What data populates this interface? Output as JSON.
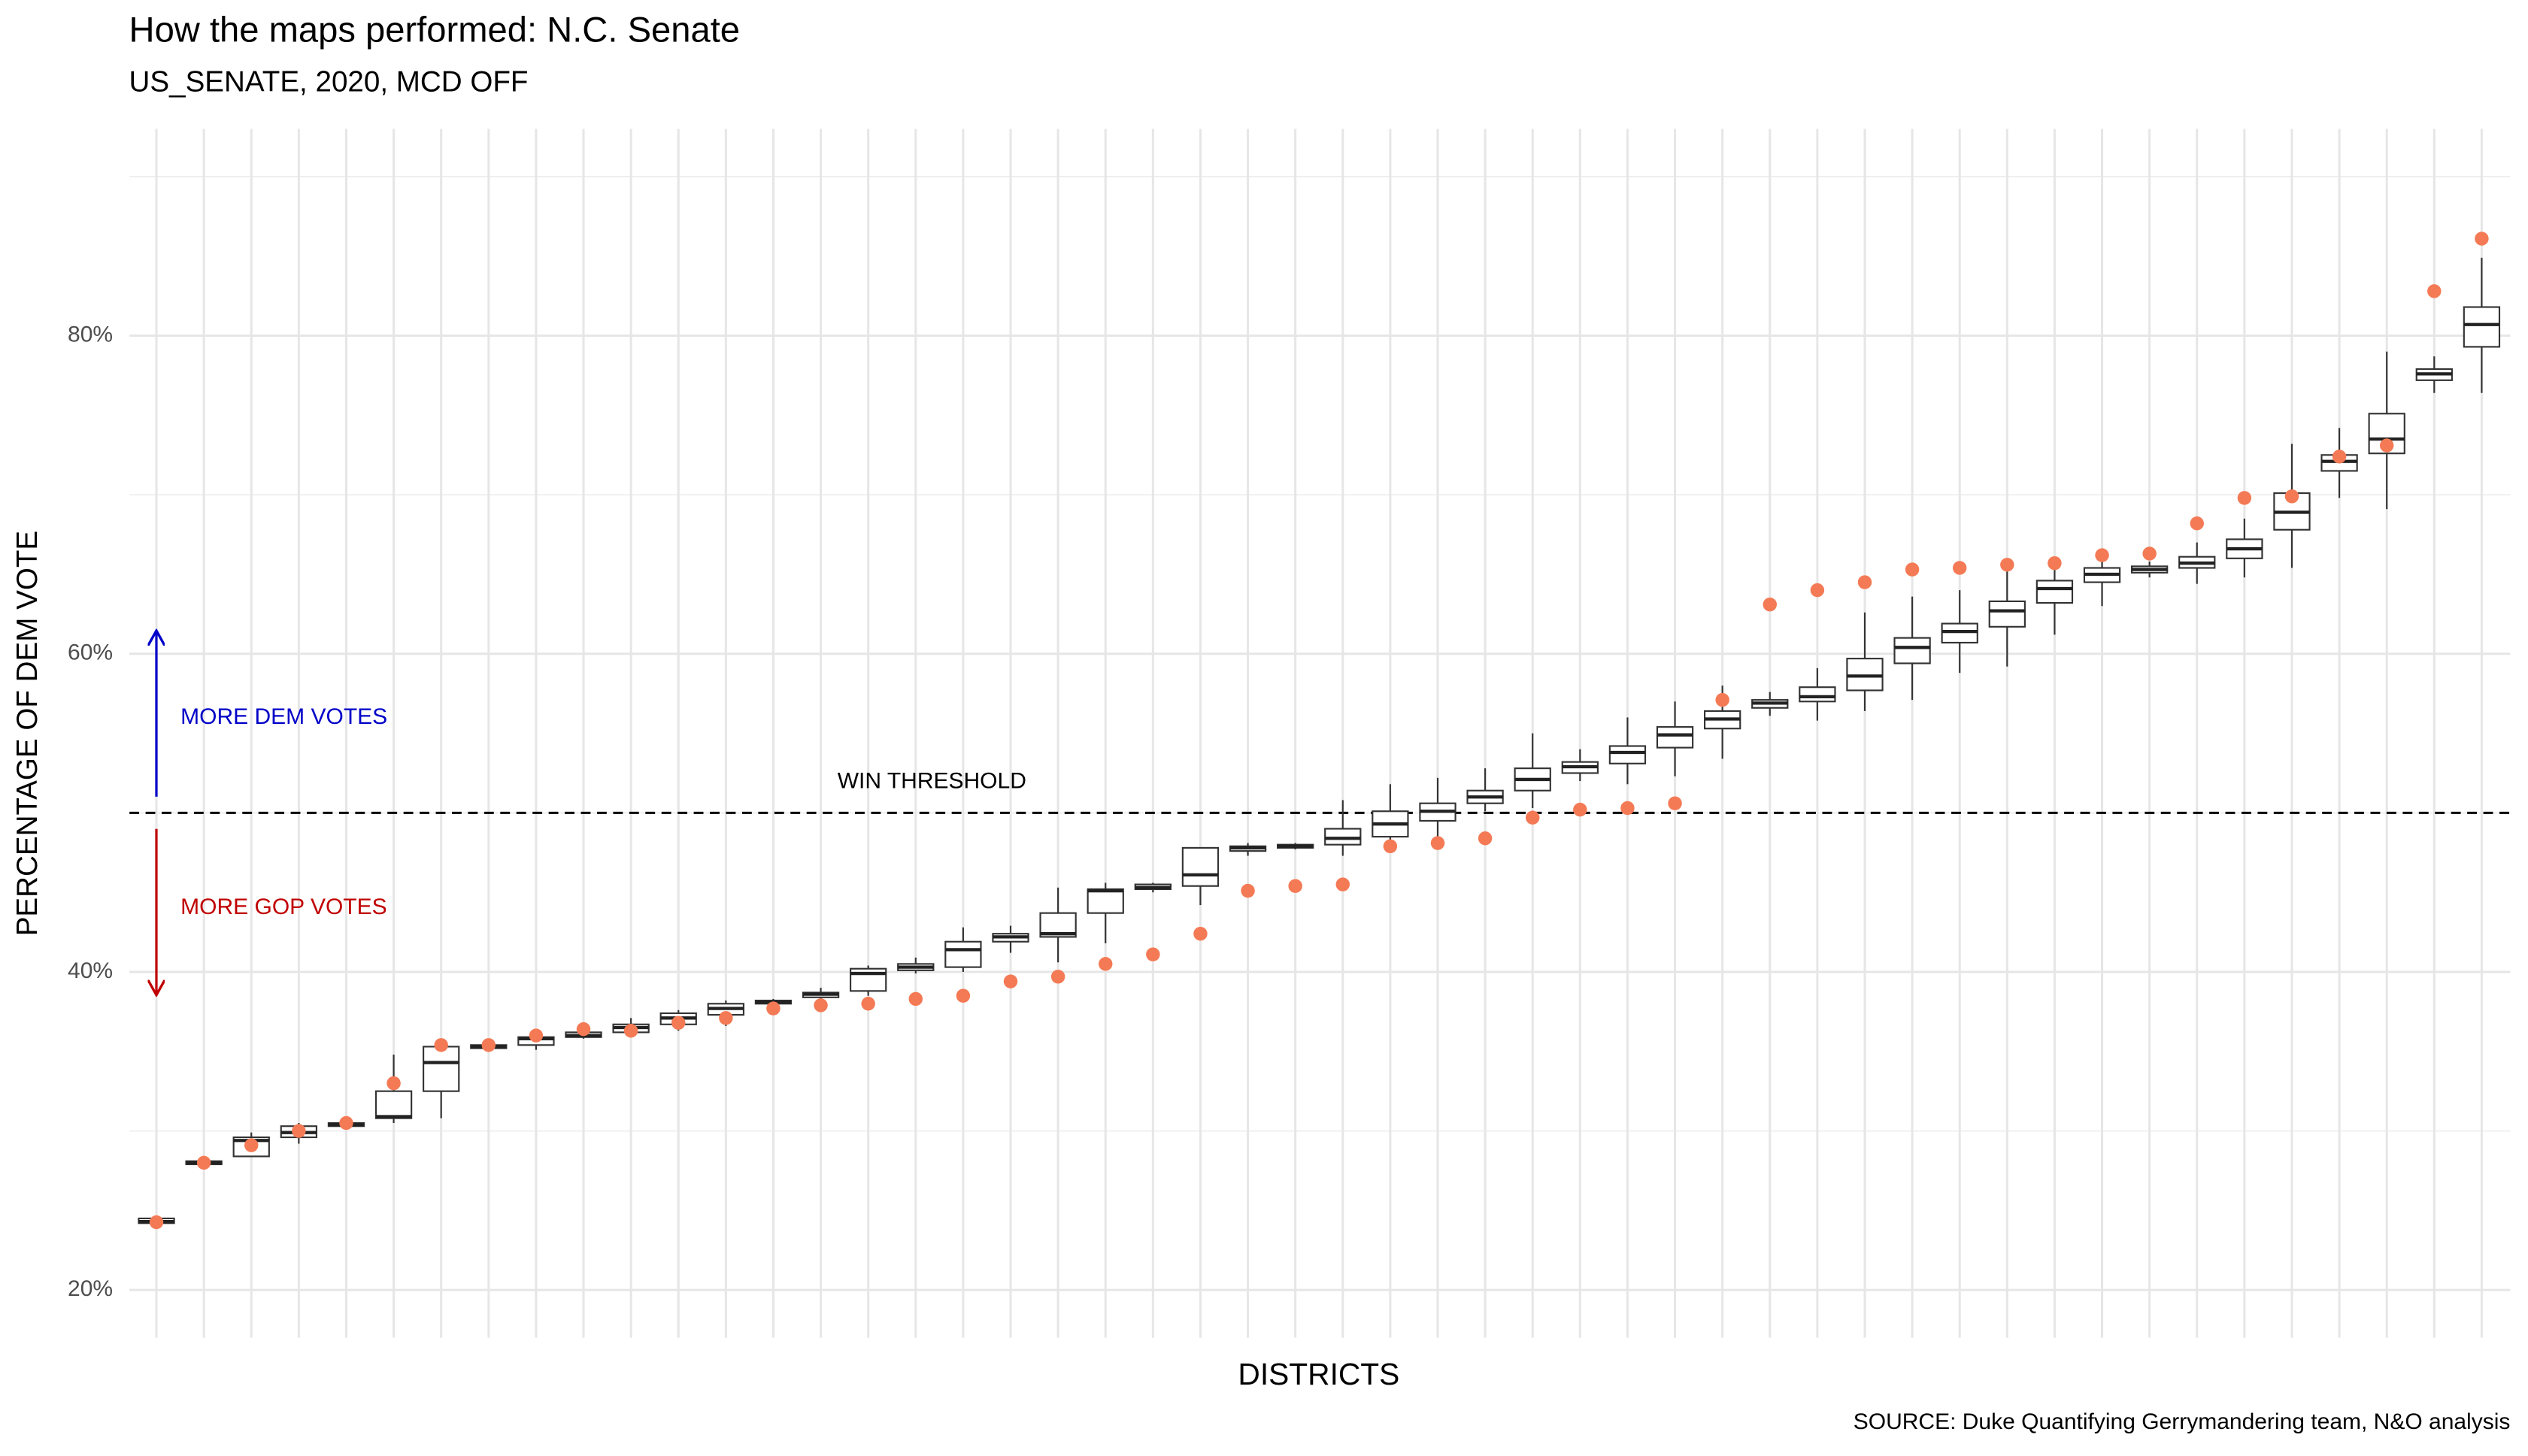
{
  "chart_data": {
    "type": "box",
    "title": "How the maps performed: N.C. Senate",
    "subtitle": "US_SENATE, 2020, MCD OFF",
    "x_label": "DISTRICTS",
    "y_label": "PERCENTAGE OF DEM VOTE",
    "source": "SOURCE: Duke Quantifying Gerrymandering team, N&O analysis",
    "annotations": {
      "threshold_label": "WIN THRESHOLD",
      "dem_label": "MORE DEM VOTES",
      "gop_label": "MORE GOP VOTES"
    },
    "threshold": 50,
    "dem_color": "#0000c8",
    "gop_color": "#c00000",
    "point_color": "#f47a55",
    "grid": true,
    "ylim": [
      17,
      93
    ],
    "yticks": [
      {
        "value": 20,
        "label": "20%"
      },
      {
        "value": 40,
        "label": "40%"
      },
      {
        "value": 60,
        "label": "60%"
      },
      {
        "value": 80,
        "label": "80%"
      }
    ],
    "categories": [
      null,
      null,
      null,
      null,
      null,
      null,
      null,
      null,
      null,
      null,
      null,
      null,
      null,
      null,
      null,
      null,
      null,
      null,
      null,
      null,
      null,
      null,
      null,
      null,
      null,
      null,
      null,
      null,
      null,
      null,
      null,
      null,
      null,
      null,
      null,
      null,
      null,
      null,
      null,
      null,
      null,
      null,
      null,
      null,
      null,
      null,
      null,
      null,
      null,
      null
    ],
    "whisker_low": [
      24.05,
      27.8,
      28.4,
      29.2,
      30.2,
      30.5,
      30.8,
      35.1,
      35.1,
      35.8,
      35.9,
      36.3,
      36.6,
      37.9,
      38.2,
      38.5,
      39.9,
      40.0,
      41.2,
      40.6,
      41.8,
      45.0,
      44.2,
      47.3,
      47.7,
      47.3,
      47.5,
      47.8,
      50.1,
      50.3,
      52.0,
      51.8,
      52.3,
      53.4,
      56.1,
      55.8,
      56.4,
      57.1,
      58.8,
      59.2,
      61.2,
      63.0,
      64.8,
      64.4,
      64.8,
      65.4,
      69.8,
      69.1,
      76.4,
      76.4
    ],
    "q1": [
      24.2,
      27.9,
      28.4,
      29.6,
      30.3,
      30.8,
      32.5,
      35.2,
      35.4,
      35.9,
      36.2,
      36.7,
      37.3,
      38.0,
      38.4,
      38.8,
      40.1,
      40.3,
      41.9,
      42.2,
      43.7,
      45.2,
      45.4,
      47.6,
      47.8,
      48.0,
      48.5,
      49.5,
      50.6,
      51.4,
      52.5,
      53.1,
      54.1,
      55.3,
      56.6,
      57.0,
      57.7,
      59.4,
      60.7,
      61.7,
      63.2,
      64.5,
      65.1,
      65.4,
      66.0,
      67.8,
      71.5,
      72.6,
      77.2,
      79.3
    ],
    "median": [
      24.3,
      28.0,
      29.4,
      29.9,
      30.4,
      30.9,
      34.3,
      35.3,
      35.8,
      36.0,
      36.5,
      37.1,
      37.7,
      38.1,
      38.6,
      39.9,
      40.3,
      41.4,
      42.2,
      42.4,
      45.1,
      45.3,
      46.1,
      47.8,
      47.9,
      48.4,
      49.3,
      50.1,
      51.0,
      52.1,
      52.9,
      53.8,
      54.9,
      55.9,
      56.9,
      57.3,
      58.6,
      60.4,
      61.4,
      62.7,
      64.1,
      65.0,
      65.3,
      65.7,
      66.6,
      68.9,
      72.1,
      73.5,
      77.6,
      80.7
    ],
    "q3": [
      24.5,
      28.1,
      29.6,
      30.3,
      30.5,
      32.5,
      35.3,
      35.4,
      35.9,
      36.2,
      36.7,
      37.4,
      38.0,
      38.2,
      38.7,
      40.2,
      40.5,
      41.9,
      42.4,
      43.7,
      45.2,
      45.5,
      47.8,
      47.9,
      48.0,
      49.0,
      50.1,
      50.6,
      51.4,
      52.8,
      53.2,
      54.2,
      55.4,
      56.4,
      57.1,
      57.9,
      59.7,
      61.0,
      61.9,
      63.3,
      64.6,
      65.4,
      65.5,
      66.1,
      67.2,
      70.1,
      72.5,
      75.1,
      77.9,
      81.8
    ],
    "whisker_high": [
      24.46,
      28.2,
      29.9,
      30.5,
      30.6,
      34.8,
      35.5,
      35.4,
      36.1,
      36.3,
      37.1,
      37.6,
      38.2,
      38.3,
      39.0,
      40.4,
      40.9,
      42.8,
      42.9,
      45.3,
      45.6,
      45.6,
      47.8,
      48.1,
      48.1,
      50.8,
      51.8,
      52.2,
      52.8,
      55.0,
      54.0,
      56.0,
      57.0,
      58.0,
      57.6,
      59.1,
      62.6,
      63.6,
      64.0,
      65.3,
      65.7,
      66.0,
      65.8,
      67.0,
      68.5,
      73.2,
      74.2,
      79.0,
      78.7,
      84.9
    ],
    "enacted": [
      24.26,
      28.0,
      29.1,
      30.0,
      30.5,
      33.0,
      35.4,
      35.4,
      36.0,
      36.4,
      36.3,
      36.8,
      37.1,
      37.7,
      37.9,
      38.0,
      38.3,
      38.5,
      39.4,
      39.7,
      40.5,
      41.1,
      42.4,
      45.1,
      45.4,
      45.5,
      47.9,
      48.1,
      48.4,
      49.7,
      50.2,
      50.3,
      50.6,
      57.1,
      63.1,
      64.0,
      64.5,
      65.3,
      65.4,
      65.6,
      65.7,
      66.2,
      66.3,
      68.2,
      69.8,
      69.9,
      72.4,
      73.1,
      82.8,
      86.1
    ]
  }
}
